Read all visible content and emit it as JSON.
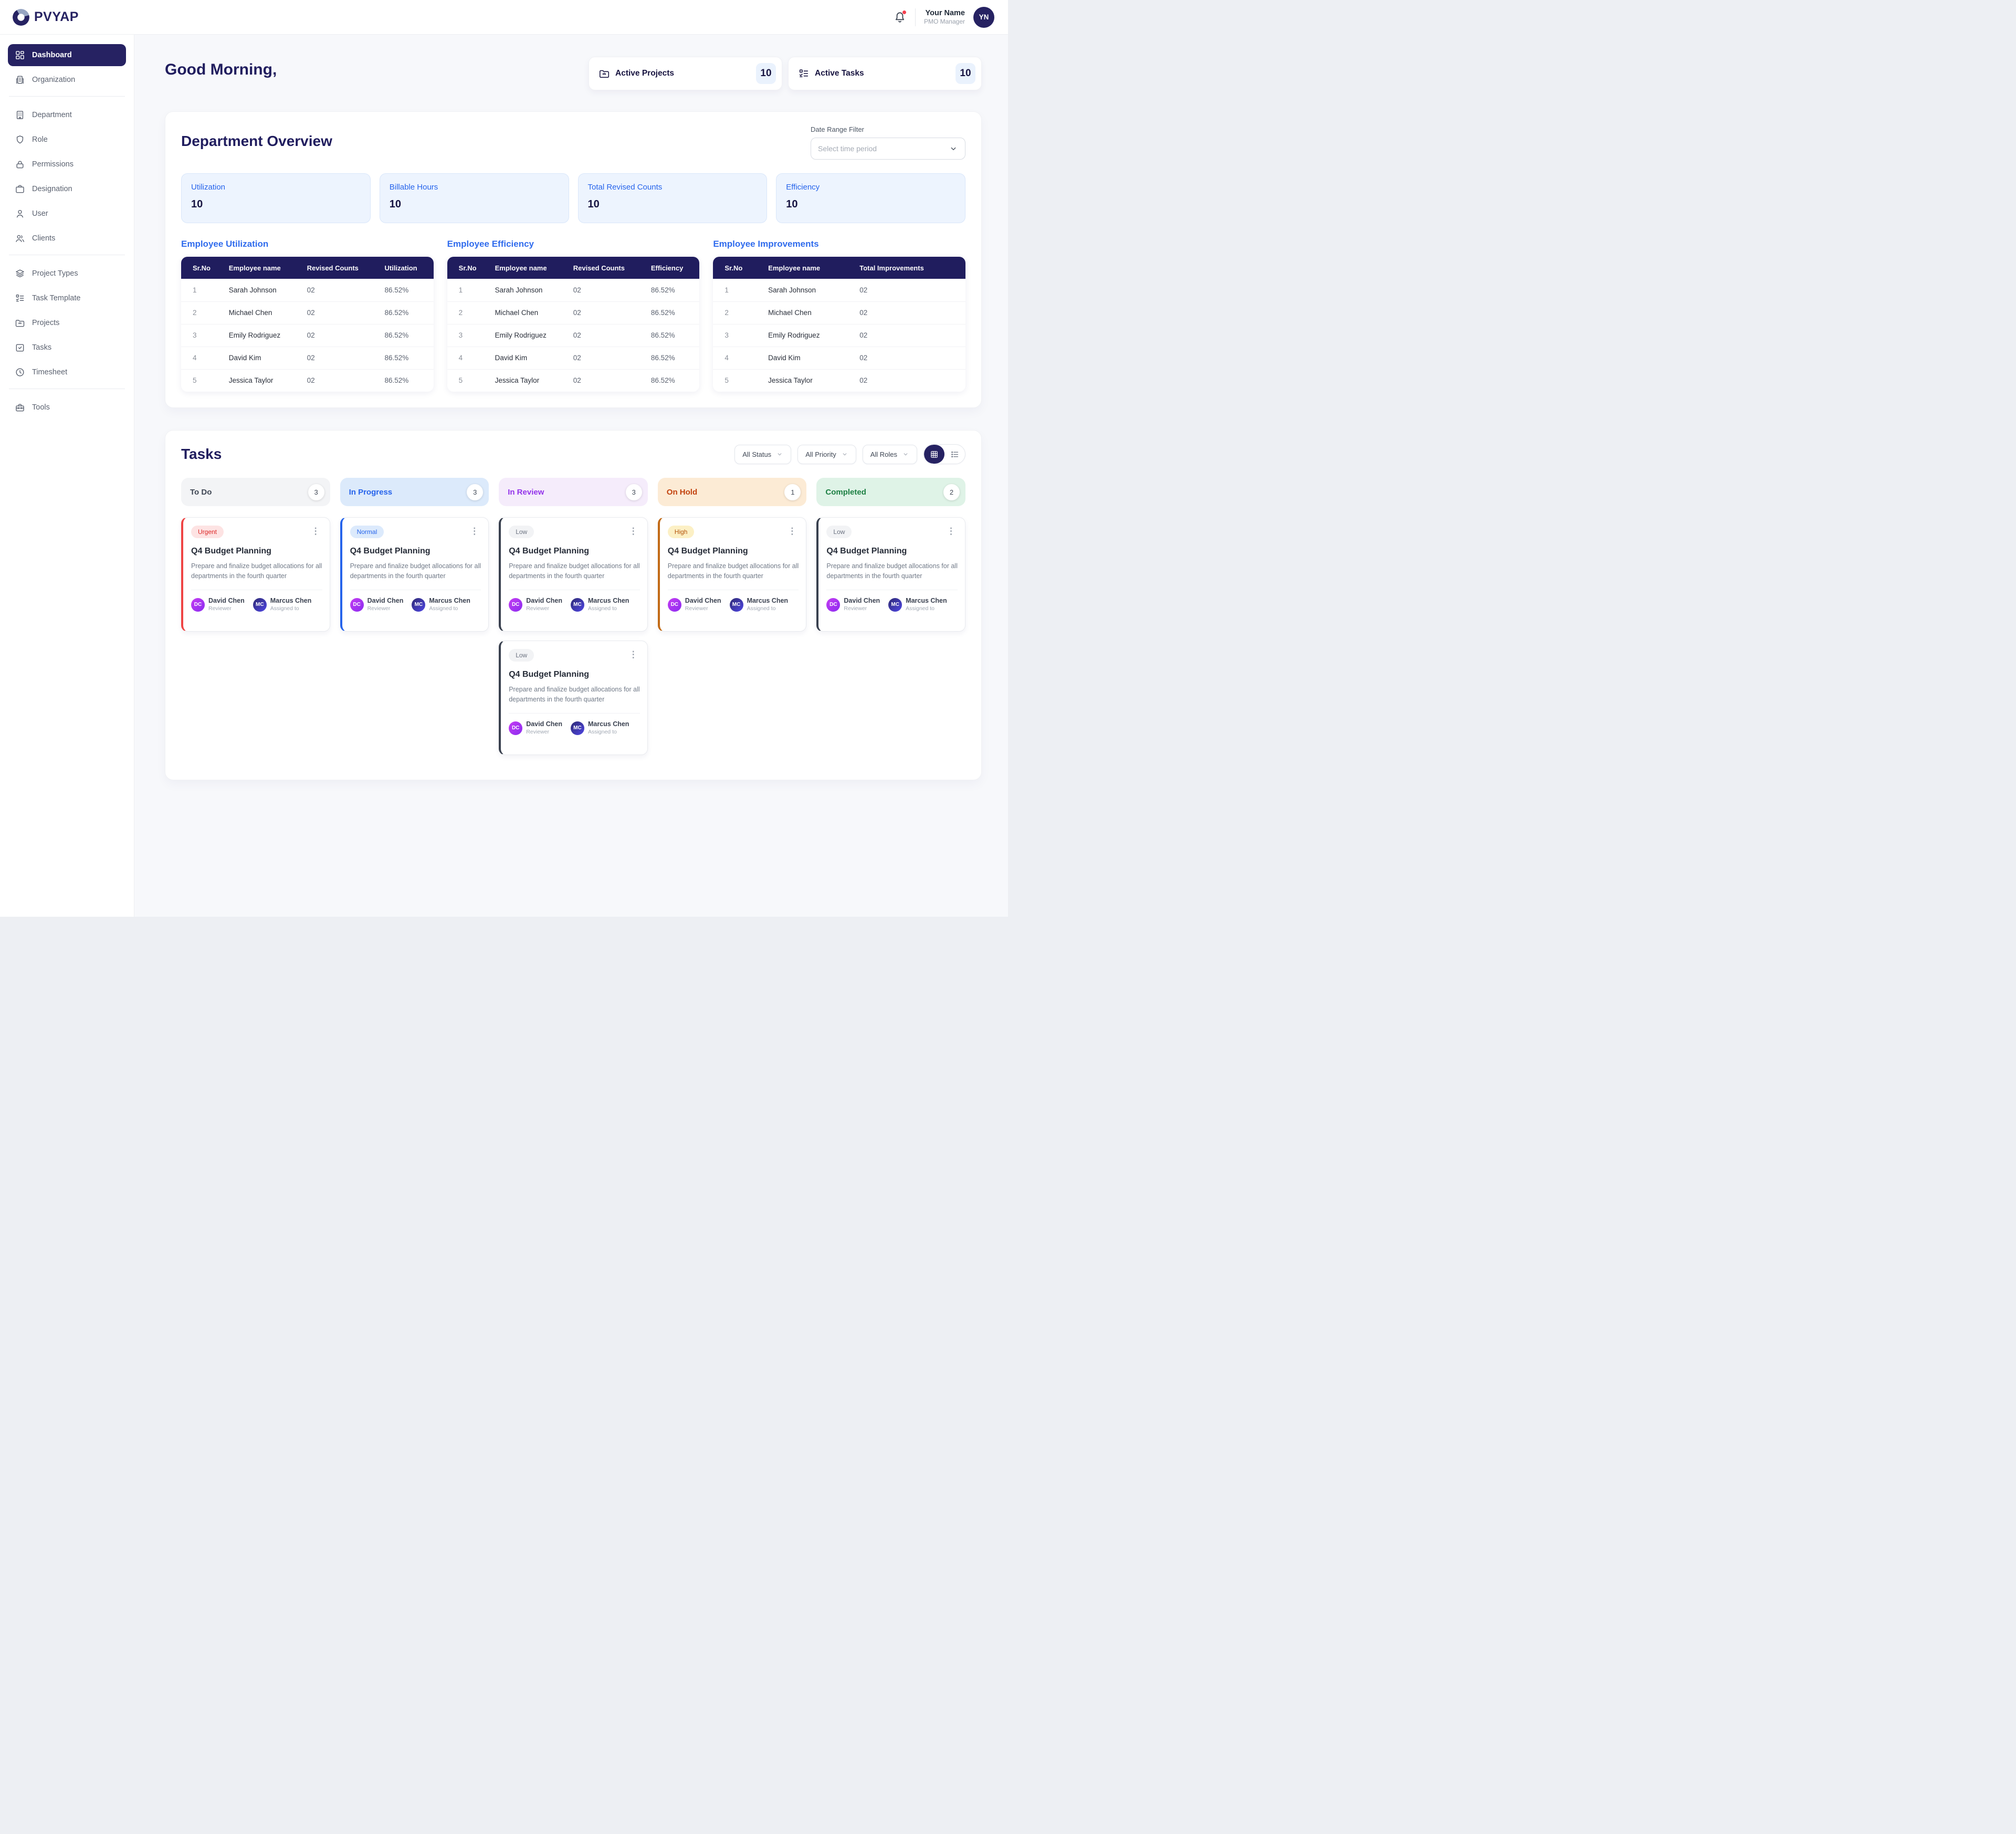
{
  "brand": {
    "name": "PVYAP"
  },
  "header": {
    "user_name": "Your Name",
    "user_role": "PMO Manager",
    "avatar_initials": "YN",
    "notification_dot_color": "#F43F4E"
  },
  "sidebar": {
    "groups": [
      {
        "items": [
          {
            "label": "Dashboard",
            "icon": "dashboard-icon",
            "active": true
          },
          {
            "label": "Organization",
            "icon": "organization-icon"
          }
        ]
      },
      {
        "items": [
          {
            "label": "Department",
            "icon": "department-icon"
          },
          {
            "label": "Role",
            "icon": "role-icon"
          },
          {
            "label": "Permissions",
            "icon": "permissions-icon"
          },
          {
            "label": "Designation",
            "icon": "designation-icon"
          },
          {
            "label": "User",
            "icon": "user-icon"
          },
          {
            "label": "Clients",
            "icon": "clients-icon"
          }
        ]
      },
      {
        "items": [
          {
            "label": "Project Types",
            "icon": "project-types-icon"
          },
          {
            "label": "Task Template",
            "icon": "task-template-icon"
          },
          {
            "label": "Projects",
            "icon": "projects-icon"
          },
          {
            "label": "Tasks",
            "icon": "tasks-icon"
          },
          {
            "label": "Timesheet",
            "icon": "timesheet-icon"
          }
        ]
      },
      {
        "items": [
          {
            "label": "Tools",
            "icon": "tools-icon"
          }
        ]
      }
    ]
  },
  "greeting": "Good Morning,",
  "summary_cards": [
    {
      "label": "Active Projects",
      "value": "10",
      "icon": "folder-icon"
    },
    {
      "label": "Active Tasks",
      "value": "10",
      "icon": "task-template-icon"
    }
  ],
  "department_overview": {
    "title": "Department Overview",
    "date_filter_label": "Date Range Filter",
    "date_filter_placeholder": "Select time period",
    "stats": [
      {
        "label": "Utilization",
        "value": "10"
      },
      {
        "label": "Billable Hours",
        "value": "10"
      },
      {
        "label": "Total Revised Counts",
        "value": "10"
      },
      {
        "label": "Efficiency",
        "value": "10"
      }
    ],
    "stat_colors": {
      "bg": "#EDF4FE",
      "border": "#D9E6FA",
      "label": "#2563EB",
      "value": "#16123F"
    },
    "tables": [
      {
        "title": "Employee Utilization",
        "columns": [
          "Sr.No",
          "Employee name",
          "Revised Counts",
          "Utilization"
        ],
        "rows": [
          [
            "1",
            "Sarah Johnson",
            "02",
            "86.52%"
          ],
          [
            "2",
            "Michael Chen",
            "02",
            "86.52%"
          ],
          [
            "3",
            "Emily Rodriguez",
            "02",
            "86.52%"
          ],
          [
            "4",
            "David Kim",
            "02",
            "86.52%"
          ],
          [
            "5",
            "Jessica Taylor",
            "02",
            "86.52%"
          ]
        ]
      },
      {
        "title": "Employee Efficiency",
        "columns": [
          "Sr.No",
          "Employee name",
          "Revised Counts",
          "Efficiency"
        ],
        "rows": [
          [
            "1",
            "Sarah Johnson",
            "02",
            "86.52%"
          ],
          [
            "2",
            "Michael Chen",
            "02",
            "86.52%"
          ],
          [
            "3",
            "Emily Rodriguez",
            "02",
            "86.52%"
          ],
          [
            "4",
            "David Kim",
            "02",
            "86.52%"
          ],
          [
            "5",
            "Jessica Taylor",
            "02",
            "86.52%"
          ]
        ]
      },
      {
        "title": "Employee Improvements",
        "columns": [
          "Sr.No",
          "Employee name",
          "Total Improvements"
        ],
        "rows": [
          [
            "1",
            "Sarah Johnson",
            "02"
          ],
          [
            "2",
            "Michael Chen",
            "02"
          ],
          [
            "3",
            "Emily Rodriguez",
            "02"
          ],
          [
            "4",
            "David Kim",
            "02"
          ],
          [
            "5",
            "Jessica Taylor",
            "02"
          ]
        ]
      }
    ],
    "table_header_color": "#201D5E"
  },
  "tasks": {
    "title": "Tasks",
    "filters": [
      "All Status",
      "All Priority",
      "All Roles"
    ],
    "view_toggle": {
      "active": "grid",
      "options": [
        "grid",
        "list"
      ]
    },
    "priority_styles": {
      "Urgent": {
        "bg": "#FDE3E3",
        "text": "#DC2626"
      },
      "Normal": {
        "bg": "#DCEAFC",
        "text": "#2563EB"
      },
      "Low": {
        "bg": "#F2F3F5",
        "text": "#6B7280"
      },
      "High": {
        "bg": "#FCF0C5",
        "text": "#B45309"
      }
    },
    "card": {
      "title": "Q4 Budget Planning",
      "description": "Prepare and finalize budget allocations for all departments in the fourth quarter",
      "reviewer": {
        "initials": "DC",
        "name": "David Chen",
        "role": "Reviewer"
      },
      "assignee": {
        "initials": "MC",
        "name": "Marcus Chen",
        "role": "Assigned to"
      }
    },
    "avatar_colors": {
      "reviewer": [
        "#C53DF2",
        "#8B2CF0"
      ],
      "assignee": [
        "#2E2A72",
        "#4F46E5"
      ]
    },
    "columns": [
      {
        "label": "To Do",
        "count": "3",
        "header_bg": "#F3F4F6",
        "header_text": "#3F4754",
        "accent": "#EF4444",
        "cards": [
          {
            "priority": "Urgent"
          }
        ]
      },
      {
        "label": "In Progress",
        "count": "3",
        "header_bg": "#DCEAFB",
        "header_text": "#2563EB",
        "accent": "#2563EB",
        "cards": [
          {
            "priority": "Normal"
          }
        ]
      },
      {
        "label": "In Review",
        "count": "3",
        "header_bg": "#F5ECFB",
        "header_text": "#9333EA",
        "accent": "#39404E",
        "cards": [
          {
            "priority": "Low"
          },
          {
            "priority": "Low"
          }
        ]
      },
      {
        "label": "On Hold",
        "count": "1",
        "header_bg": "#FCEBD5",
        "header_text": "#C2410C",
        "accent": "#C26A15",
        "cards": [
          {
            "priority": "High"
          }
        ]
      },
      {
        "label": "Completed",
        "count": "2",
        "header_bg": "#DFF3E7",
        "header_text": "#1B7F42",
        "accent": "#39404E",
        "cards": [
          {
            "priority": "Low"
          }
        ]
      }
    ]
  }
}
